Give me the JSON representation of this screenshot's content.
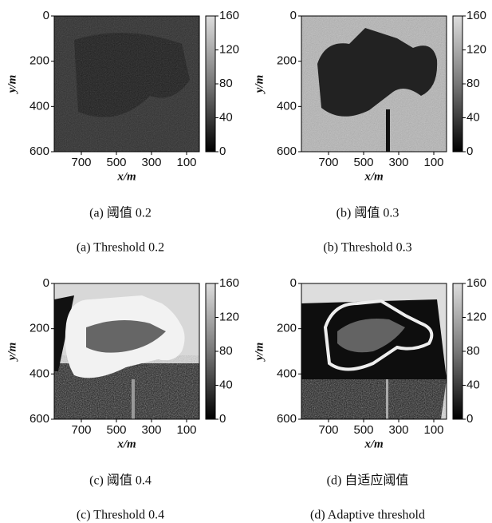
{
  "panels": [
    {
      "y_label": "y/m",
      "x_label": "x/m",
      "y_ticks": [
        0,
        200,
        400,
        600
      ],
      "x_ticks": [
        700,
        500,
        300,
        100
      ],
      "colorbar_ticks": [
        160,
        120,
        80,
        40,
        0
      ],
      "caption_cn": "(a) 阈值 0.2",
      "caption_en": "(a) Threshold 0.2"
    },
    {
      "y_label": "y/m",
      "x_label": "x/m",
      "y_ticks": [
        0,
        200,
        400,
        600
      ],
      "x_ticks": [
        700,
        500,
        300,
        100
      ],
      "colorbar_ticks": [
        160,
        120,
        80,
        40,
        0
      ],
      "caption_cn": "(b) 阈值 0.3",
      "caption_en": "(b) Threshold 0.3"
    },
    {
      "y_label": "y/m",
      "x_label": "x/m",
      "y_ticks": [
        0,
        200,
        400,
        600
      ],
      "x_ticks": [
        700,
        500,
        300,
        100
      ],
      "colorbar_ticks": [
        160,
        120,
        80,
        40,
        0
      ],
      "caption_cn": "(c) 阈值 0.4",
      "caption_en": "(c) Threshold 0.4"
    },
    {
      "y_label": "y/m",
      "x_label": "x/m",
      "y_ticks": [
        0,
        200,
        400,
        600
      ],
      "x_ticks": [
        700,
        500,
        300,
        100
      ],
      "colorbar_ticks": [
        160,
        120,
        80,
        40,
        0
      ],
      "caption_cn": "(d) 自适应阈值",
      "caption_en": "(d) Adaptive threshold"
    }
  ]
}
